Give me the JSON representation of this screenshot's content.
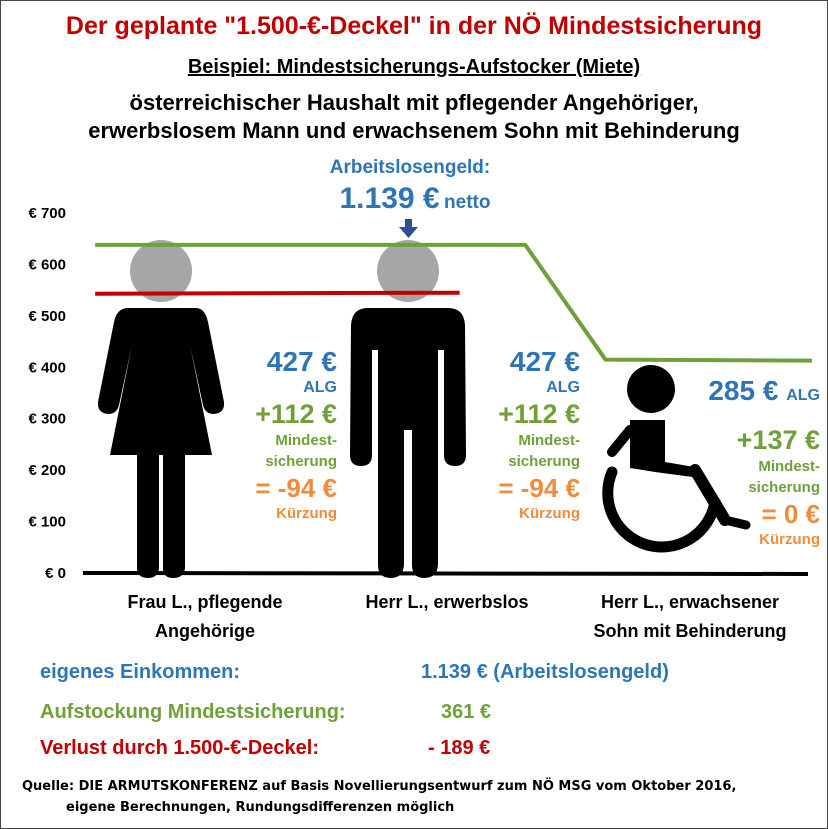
{
  "title": "Der geplante \"1.500-€-Deckel\" in der NÖ Mindestsicherung",
  "subtitle": "Beispiel: Mindestsicherungs-Aufstocker (Miete)",
  "description": [
    "österreichischer Haushalt mit pflegender Angehöriger,",
    "erwerbslosem Mann und erwachsenem Sohn mit Behinderung"
  ],
  "alg_annotation": {
    "heading": "Arbeitslosengeld:",
    "amount": "1.139 €",
    "suffix": "netto"
  },
  "chart_data": {
    "type": "line",
    "ylim": [
      0,
      700
    ],
    "y_ticks": [
      "€ 0",
      "€ 100",
      "€ 200",
      "€ 300",
      "€ 400",
      "€ 500",
      "€ 600",
      "€ 700"
    ],
    "y_tick_values": [
      0,
      100,
      200,
      300,
      400,
      500,
      600,
      700
    ],
    "categories": [
      "Frau L., pflegende Angehörige",
      "Herr L., erwerbslos",
      "Herr L., erwachsener Sohn mit Behinderung"
    ],
    "series": [
      {
        "color": "#70a03a",
        "points": [
          [
            0.05,
            638
          ],
          [
            1.82,
            638
          ],
          [
            2.15,
            415
          ],
          [
            3.0,
            413
          ]
        ]
      },
      {
        "color": "#c00000",
        "points": [
          [
            0.05,
            543
          ],
          [
            1.55,
            545
          ]
        ]
      }
    ]
  },
  "columns": [
    {
      "alg": "427 €",
      "alg_label": "ALG",
      "ms": "+112 €",
      "ms_label": [
        "Mindest-",
        "sicherung"
      ],
      "cut": "= -94 €",
      "cut_label": "Kürzung"
    },
    {
      "alg": "427 €",
      "alg_label": "ALG",
      "ms": "+112 €",
      "ms_label": [
        "Mindest-",
        "sicherung"
      ],
      "cut": "= -94 €",
      "cut_label": "Kürzung"
    },
    {
      "alg": "285 €",
      "alg_label": "ALG",
      "ms": "+137 €",
      "ms_label": [
        "Mindest-",
        "sicherung"
      ],
      "cut": "= 0 €",
      "cut_label": "Kürzung"
    }
  ],
  "x_labels": [
    [
      "Frau L., pflegende",
      "Angehörige"
    ],
    [
      "Herr L., erwerbslos"
    ],
    [
      "Herr L., erwachsener",
      "Sohn mit Behinderung"
    ]
  ],
  "summary": {
    "income_label": "eigenes Einkommen:",
    "income_value": "1.139 € (Arbeitslosengeld)",
    "top_up_label": "Aufstockung Mindestsicherung:",
    "top_up_value": "361 €",
    "loss_label": "Verlust durch 1.500-€-Deckel:",
    "loss_value": "- 189 €"
  },
  "source": [
    "Quelle: DIE ARMUTSKONFERENZ  auf Basis Novellierungsentwurf zum NÖ MSG vom Oktober 2016,",
    "eigene Berechnungen, Rundungsdifferenzen möglich"
  ],
  "colors": {
    "title": "#c00000",
    "alg": "#2e75b6",
    "mindestsicherung": "#70a03a",
    "kuerzung": "#f08c3c",
    "cap_line": "#c00000",
    "income_line": "#70a03a",
    "figure": "#000000",
    "head": "#a6a6a6"
  },
  "icons": [
    "woman-icon",
    "man-icon",
    "wheelchair-icon",
    "arrow-down-icon"
  ]
}
